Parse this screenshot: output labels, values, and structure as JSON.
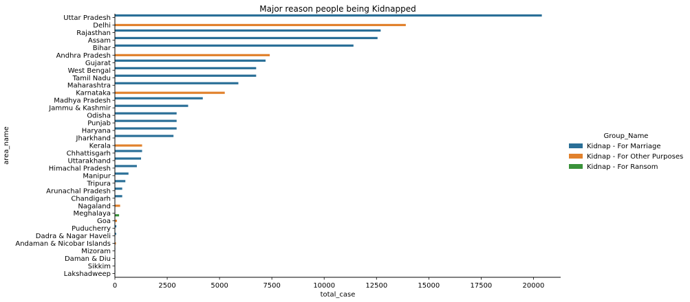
{
  "chart_data": {
    "type": "bar",
    "orientation": "horizontal",
    "title": "Major reason people being Kidnapped",
    "xlabel": "total_case",
    "ylabel": "area_name",
    "xlim": [
      0,
      21300
    ],
    "xticks": [
      0,
      2500,
      5000,
      7500,
      10000,
      12500,
      15000,
      17500,
      20000
    ],
    "grid": false,
    "legend_position": "right",
    "legend": {
      "title": "Group_Name",
      "entries": [
        {
          "name": "Kidnap - For Marriage",
          "color": "#2a6f97"
        },
        {
          "name": "Kidnap - For Other Purposes",
          "color": "#e1812c"
        },
        {
          "name": "Kidnap - For Ransom",
          "color": "#3a923a"
        }
      ]
    },
    "categories": [
      "Uttar Pradesh",
      "Delhi",
      "Rajasthan",
      "Assam",
      "Bihar",
      "Andhra Pradesh",
      "Gujarat",
      "West Bengal",
      "Tamil Nadu",
      "Maharashtra",
      "Karnataka",
      "Madhya Pradesh",
      "Jammu & Kashmir",
      "Odisha",
      "Punjab",
      "Haryana",
      "Jharkhand",
      "Kerala",
      "Chhattisgarh",
      "Uttarakhand",
      "Himachal Pradesh",
      "Manipur",
      "Tripura",
      "Arunachal Pradesh",
      "Chandigarh",
      "Nagaland",
      "Meghalaya",
      "Goa",
      "Puducherry",
      "Dadra & Nagar Haveli",
      "Andaman & Nicobar Islands",
      "Mizoram",
      "Daman & Diu",
      "Sikkim",
      "Lakshadweep"
    ],
    "bars": [
      {
        "series": 0,
        "value": 20400
      },
      {
        "series": 1,
        "value": 13900
      },
      {
        "series": 0,
        "value": 12700
      },
      {
        "series": 0,
        "value": 12550
      },
      {
        "series": 0,
        "value": 11400
      },
      {
        "series": 1,
        "value": 7400
      },
      {
        "series": 0,
        "value": 7200
      },
      {
        "series": 0,
        "value": 6750
      },
      {
        "series": 0,
        "value": 6750
      },
      {
        "series": 0,
        "value": 5900
      },
      {
        "series": 1,
        "value": 5250
      },
      {
        "series": 0,
        "value": 4200
      },
      {
        "series": 0,
        "value": 3500
      },
      {
        "series": 0,
        "value": 2950
      },
      {
        "series": 0,
        "value": 2950
      },
      {
        "series": 0,
        "value": 2950
      },
      {
        "series": 0,
        "value": 2800
      },
      {
        "series": 1,
        "value": 1300
      },
      {
        "series": 0,
        "value": 1300
      },
      {
        "series": 0,
        "value": 1250
      },
      {
        "series": 0,
        "value": 1050
      },
      {
        "series": 0,
        "value": 650
      },
      {
        "series": 0,
        "value": 500
      },
      {
        "series": 0,
        "value": 350
      },
      {
        "series": 0,
        "value": 350
      },
      {
        "series": 1,
        "value": 250
      },
      {
        "series": 2,
        "value": 200
      },
      {
        "series": 1,
        "value": 100
      },
      {
        "series": 0,
        "value": 70
      },
      {
        "series": 0,
        "value": 60
      },
      {
        "series": 1,
        "value": 50
      },
      {
        "series": 0,
        "value": 10
      },
      {
        "series": 0,
        "value": 5
      },
      {
        "series": 0,
        "value": 5
      },
      {
        "series": 0,
        "value": 2
      }
    ]
  }
}
